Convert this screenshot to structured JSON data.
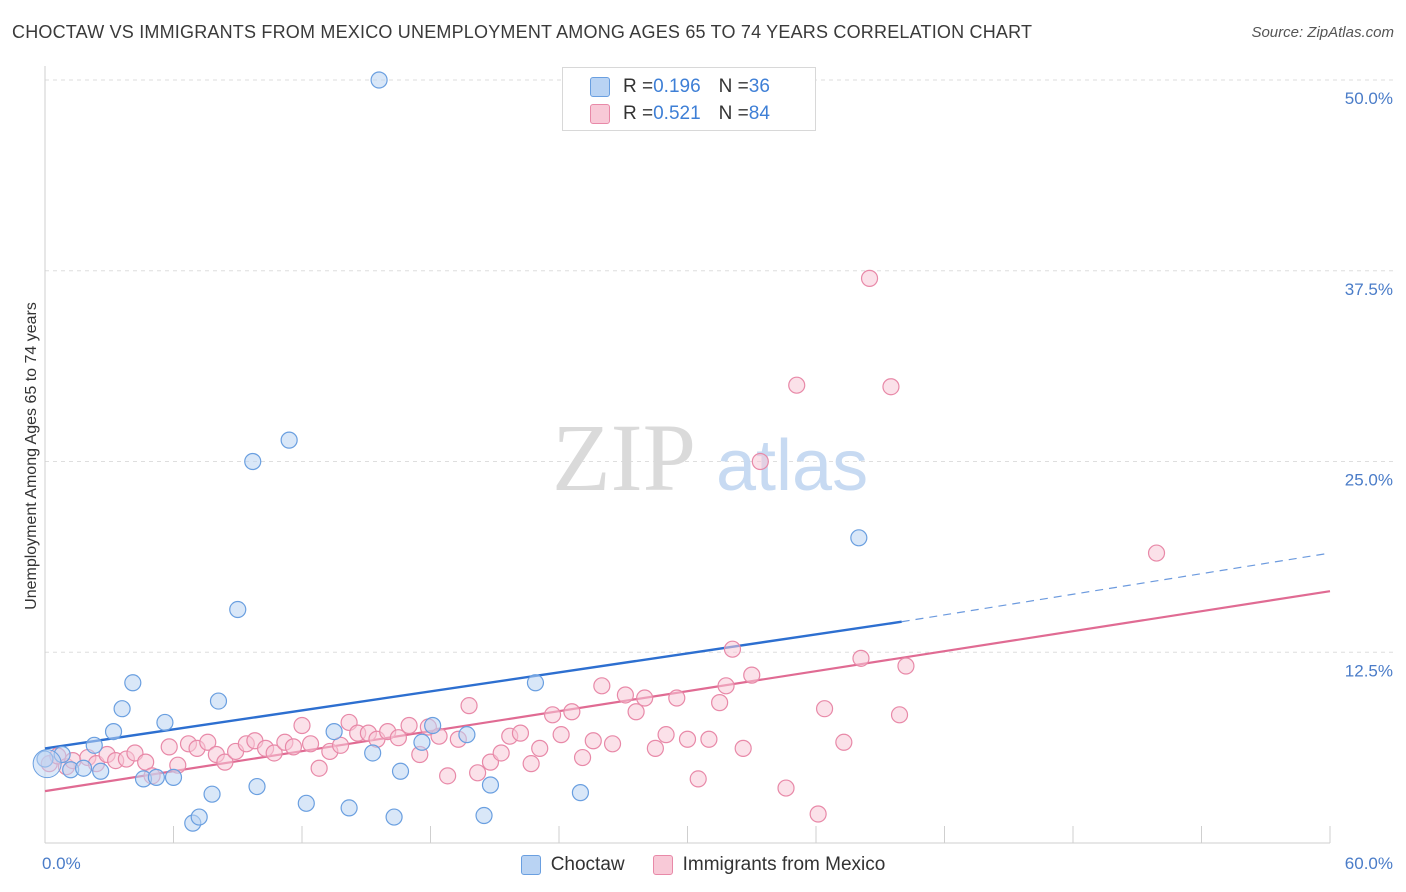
{
  "header": {
    "title": "CHOCTAW VS IMMIGRANTS FROM MEXICO UNEMPLOYMENT AMONG AGES 65 TO 74 YEARS CORRELATION CHART",
    "source": "Source: ZipAtlas.com"
  },
  "watermark": {
    "zip": "ZIP",
    "atlas": "atlas"
  },
  "legend": {
    "rows": [
      {
        "r_label": "R = ",
        "r_value": "0.196",
        "n_label": "N = ",
        "n_value": "36",
        "color": "#a9c8f0"
      },
      {
        "r_label": "R = ",
        "r_value": "0.521",
        "n_label": "N = ",
        "n_value": "84",
        "color": "#f5b8c9"
      }
    ]
  },
  "bottom_legend": {
    "items": [
      {
        "label": "Choctaw",
        "color": "#a9c8f0"
      },
      {
        "label": "Immigrants from Mexico",
        "color": "#f5b8c9"
      }
    ]
  },
  "chart_data": {
    "type": "scatter",
    "title": "CHOCTAW VS IMMIGRANTS FROM MEXICO UNEMPLOYMENT AMONG AGES 65 TO 74 YEARS CORRELATION CHART",
    "ylabel": "Unemployment Among Ages 65 to 74 years",
    "xlabel": "",
    "xlim": [
      0,
      60
    ],
    "ylim": [
      0,
      50
    ],
    "x_tick_labels": [
      "0.0%",
      "60.0%"
    ],
    "y_tick_labels": [
      "12.5%",
      "25.0%",
      "37.5%",
      "50.0%"
    ],
    "y_ticks": [
      12.5,
      25.0,
      37.5,
      50.0
    ],
    "grid": true,
    "legend_placement": "top-center",
    "series": [
      {
        "name": "Choctaw",
        "color": "#6a9fe0",
        "fill": "#b9d3f3",
        "trend": {
          "x0": 0,
          "y0": 6.2,
          "x1": 40,
          "y1": 14.5,
          "dashed_to_x": 60,
          "dashed_to_y": 19.0,
          "color": "#2d6fd0"
        },
        "points": [
          [
            0.0,
            5.5
          ],
          [
            0.8,
            5.8
          ],
          [
            1.2,
            4.8
          ],
          [
            1.8,
            4.9
          ],
          [
            2.3,
            6.4
          ],
          [
            2.6,
            4.7
          ],
          [
            3.2,
            7.3
          ],
          [
            3.6,
            8.8
          ],
          [
            4.1,
            10.5
          ],
          [
            4.6,
            4.2
          ],
          [
            5.2,
            4.3
          ],
          [
            5.6,
            7.9
          ],
          [
            6.0,
            4.3
          ],
          [
            6.9,
            1.3
          ],
          [
            7.2,
            1.7
          ],
          [
            7.8,
            3.2
          ],
          [
            8.1,
            9.3
          ],
          [
            9.0,
            15.3
          ],
          [
            9.7,
            25.0
          ],
          [
            9.9,
            3.7
          ],
          [
            11.4,
            26.4
          ],
          [
            12.2,
            2.6
          ],
          [
            13.5,
            7.3
          ],
          [
            14.2,
            2.3
          ],
          [
            15.3,
            5.9
          ],
          [
            15.6,
            50.0
          ],
          [
            16.3,
            1.7
          ],
          [
            16.6,
            4.7
          ],
          [
            17.6,
            6.6
          ],
          [
            18.1,
            7.7
          ],
          [
            19.7,
            7.1
          ],
          [
            20.5,
            1.8
          ],
          [
            20.8,
            3.8
          ],
          [
            22.9,
            10.5
          ],
          [
            25.0,
            3.3
          ],
          [
            38.0,
            20.0
          ]
        ]
      },
      {
        "name": "Immigrants from Mexico",
        "color": "#e889a8",
        "fill": "#f8c9d7",
        "trend": {
          "x0": 0,
          "y0": 3.4,
          "x1": 60,
          "y1": 16.5,
          "color": "#e06b93"
        },
        "points": [
          [
            0.2,
            5.2
          ],
          [
            0.6,
            5.7
          ],
          [
            1.0,
            5.0
          ],
          [
            1.3,
            5.4
          ],
          [
            2.0,
            5.6
          ],
          [
            2.4,
            5.2
          ],
          [
            2.9,
            5.8
          ],
          [
            3.3,
            5.4
          ],
          [
            3.8,
            5.5
          ],
          [
            4.2,
            5.9
          ],
          [
            4.7,
            5.3
          ],
          [
            5.0,
            4.4
          ],
          [
            5.8,
            6.3
          ],
          [
            6.2,
            5.1
          ],
          [
            6.7,
            6.5
          ],
          [
            7.1,
            6.2
          ],
          [
            7.6,
            6.6
          ],
          [
            8.0,
            5.8
          ],
          [
            8.4,
            5.3
          ],
          [
            8.9,
            6.0
          ],
          [
            9.4,
            6.5
          ],
          [
            9.8,
            6.7
          ],
          [
            10.3,
            6.2
          ],
          [
            10.7,
            5.9
          ],
          [
            11.2,
            6.6
          ],
          [
            11.6,
            6.3
          ],
          [
            12.0,
            7.7
          ],
          [
            12.4,
            6.5
          ],
          [
            12.8,
            4.9
          ],
          [
            13.3,
            6.0
          ],
          [
            13.8,
            6.4
          ],
          [
            14.2,
            7.9
          ],
          [
            14.6,
            7.2
          ],
          [
            15.1,
            7.2
          ],
          [
            15.5,
            6.8
          ],
          [
            16.0,
            7.3
          ],
          [
            16.5,
            6.9
          ],
          [
            17.0,
            7.7
          ],
          [
            17.5,
            5.8
          ],
          [
            17.9,
            7.6
          ],
          [
            18.4,
            7.0
          ],
          [
            18.8,
            4.4
          ],
          [
            19.3,
            6.8
          ],
          [
            19.8,
            9.0
          ],
          [
            20.2,
            4.6
          ],
          [
            20.8,
            5.3
          ],
          [
            21.3,
            5.9
          ],
          [
            21.7,
            7.0
          ],
          [
            22.2,
            7.2
          ],
          [
            22.7,
            5.2
          ],
          [
            23.1,
            6.2
          ],
          [
            23.7,
            8.4
          ],
          [
            24.1,
            7.1
          ],
          [
            24.6,
            8.6
          ],
          [
            25.1,
            5.6
          ],
          [
            25.6,
            6.7
          ],
          [
            26.0,
            10.3
          ],
          [
            26.5,
            6.5
          ],
          [
            27.1,
            9.7
          ],
          [
            27.6,
            8.6
          ],
          [
            28.0,
            9.5
          ],
          [
            28.5,
            6.2
          ],
          [
            29.0,
            7.1
          ],
          [
            29.5,
            9.5
          ],
          [
            30.0,
            6.8
          ],
          [
            30.5,
            4.2
          ],
          [
            31.0,
            6.8
          ],
          [
            31.5,
            9.2
          ],
          [
            31.8,
            10.3
          ],
          [
            32.1,
            12.7
          ],
          [
            32.6,
            6.2
          ],
          [
            33.0,
            11.0
          ],
          [
            33.4,
            25.0
          ],
          [
            34.6,
            3.6
          ],
          [
            35.1,
            30.0
          ],
          [
            36.1,
            1.9
          ],
          [
            36.4,
            8.8
          ],
          [
            37.3,
            6.6
          ],
          [
            38.1,
            12.1
          ],
          [
            38.5,
            37.0
          ],
          [
            39.5,
            29.9
          ],
          [
            39.9,
            8.4
          ],
          [
            40.2,
            11.6
          ],
          [
            51.9,
            19.0
          ]
        ]
      }
    ]
  }
}
